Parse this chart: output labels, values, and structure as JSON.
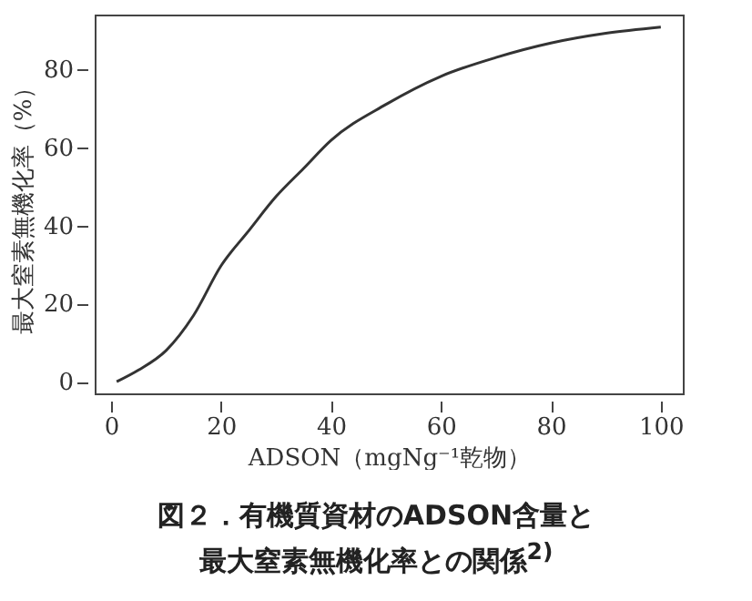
{
  "chart_data": {
    "type": "line",
    "title": "図２．有機質資材のADSON含量と最大窒素無機化率との関係$^{2)}$",
    "xlabel": "ADSON（mgNg⁻¹乾物）",
    "ylabel": "最大窒素無機化率（%）",
    "x": [
      1,
      5,
      10,
      15,
      20,
      25,
      30,
      35,
      40,
      50,
      60,
      70,
      80,
      90,
      100
    ],
    "series": [
      {
        "color": "#333333",
        "values": [
          0,
          3,
          8,
          17,
          29.7,
          38.6,
          47.4,
          54.6,
          61.8,
          71,
          78.2,
          83,
          86.7,
          89.2,
          90.8
        ]
      }
    ],
    "xlim": [
      -3,
      104
    ],
    "xticks": [
      0,
      20,
      40,
      60,
      80,
      100
    ],
    "ylim": [
      -3,
      94
    ],
    "yticks": [
      0,
      20,
      40,
      60,
      80
    ],
    "grid": false,
    "legend": false,
    "marker": "none",
    "line_style": "solid"
  }
}
